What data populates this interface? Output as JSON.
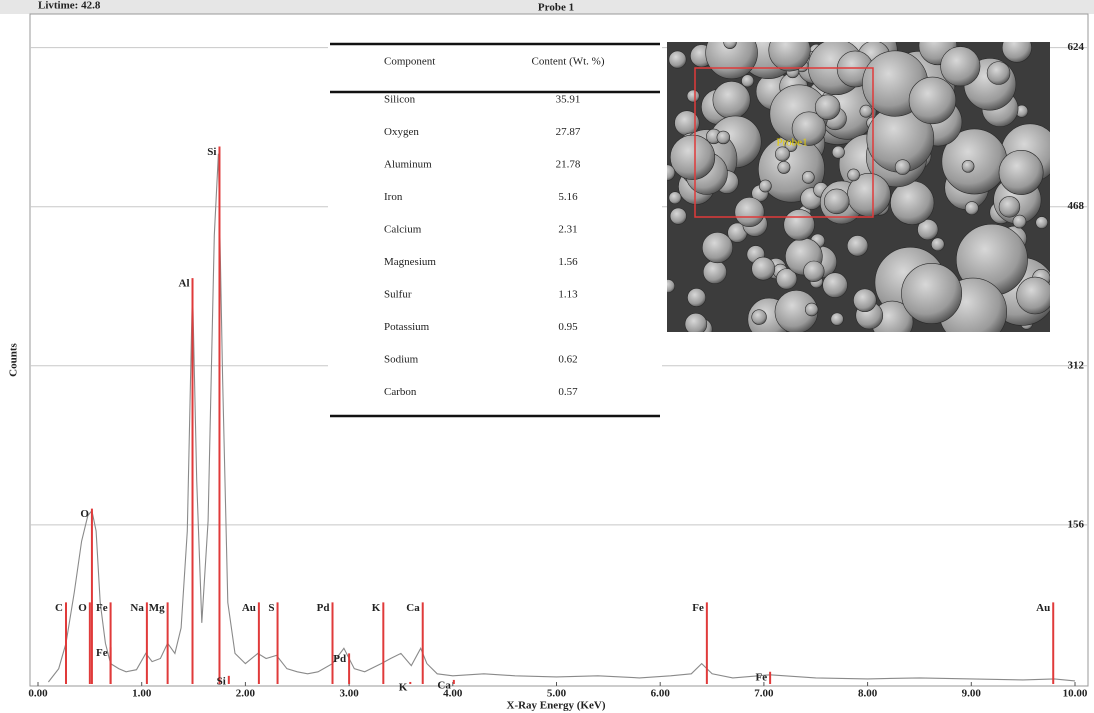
{
  "chart_data": {
    "type": "line",
    "title": "Probe 1",
    "subtitle": "Livtime: 42.8",
    "x_label": "X-Ray Energy (KeV)",
    "y_label": "Counts",
    "color": "#8a8a8a",
    "x": [
      0.1,
      0.2,
      0.27,
      0.35,
      0.42,
      0.48,
      0.52,
      0.56,
      0.6,
      0.65,
      0.7,
      0.78,
      0.85,
      0.95,
      1.04,
      1.1,
      1.18,
      1.25,
      1.32,
      1.38,
      1.44,
      1.49,
      1.53,
      1.58,
      1.64,
      1.7,
      1.74,
      1.78,
      1.83,
      1.9,
      2.0,
      2.12,
      2.2,
      2.3,
      2.4,
      2.5,
      2.6,
      2.7,
      2.84,
      2.95,
      3.05,
      3.15,
      3.31,
      3.4,
      3.5,
      3.6,
      3.69,
      3.75,
      3.85,
      4.0,
      4.3,
      4.6,
      5.0,
      5.4,
      5.8,
      6.1,
      6.3,
      6.4,
      6.5,
      6.7,
      7.06,
      7.5,
      8.0,
      8.5,
      9.0,
      9.5,
      9.8,
      10.0
    ],
    "values": [
      2,
      15,
      40,
      90,
      140,
      165,
      170,
      150,
      80,
      40,
      20,
      15,
      12,
      14,
      30,
      22,
      25,
      40,
      30,
      55,
      150,
      390,
      200,
      60,
      160,
      440,
      520,
      300,
      80,
      30,
      20,
      30,
      25,
      28,
      15,
      12,
      10,
      12,
      20,
      35,
      15,
      12,
      20,
      25,
      30,
      18,
      35,
      20,
      10,
      8,
      10,
      8,
      7,
      8,
      6,
      8,
      10,
      20,
      10,
      6,
      9,
      6,
      5,
      6,
      5,
      4,
      5,
      3
    ],
    "xlim": [
      0,
      10
    ],
    "ylim": [
      0,
      655
    ],
    "xticks": [
      {
        "value": 0,
        "label": "0.00"
      },
      {
        "value": 1,
        "label": "1.00"
      },
      {
        "value": 2,
        "label": "2.00"
      },
      {
        "value": 3,
        "label": "3.00"
      },
      {
        "value": 4,
        "label": "4.00"
      },
      {
        "value": 5,
        "label": "5.00"
      },
      {
        "value": 6,
        "label": "6.00"
      },
      {
        "value": 7,
        "label": "7.00"
      },
      {
        "value": 8,
        "label": "8.00"
      },
      {
        "value": 9,
        "label": "9.00"
      },
      {
        "value": 10,
        "label": "10.00"
      }
    ],
    "yticks": [
      156,
      312,
      468,
      624
    ],
    "grid": true,
    "marker_color": "#e03a3a",
    "markers": [
      {
        "label": "C",
        "x": 0.27,
        "height": 80
      },
      {
        "label": "O",
        "x": 0.52,
        "height": 172
      },
      {
        "label": "O",
        "x": 0.5,
        "height": 80
      },
      {
        "label": "Fe",
        "x": 0.7,
        "height": 80
      },
      {
        "label": "Fe",
        "x": 0.7,
        "height": 36
      },
      {
        "label": "Na",
        "x": 1.05,
        "height": 80
      },
      {
        "label": "Mg",
        "x": 1.25,
        "height": 80
      },
      {
        "label": "Al",
        "x": 1.49,
        "height": 398
      },
      {
        "label": "Si",
        "x": 1.75,
        "height": 527
      },
      {
        "label": "Si",
        "x": 1.84,
        "height": 8
      },
      {
        "label": "Au",
        "x": 2.13,
        "height": 80
      },
      {
        "label": "S",
        "x": 2.31,
        "height": 80
      },
      {
        "label": "Pd",
        "x": 2.84,
        "height": 80
      },
      {
        "label": "Pd",
        "x": 3.0,
        "height": 30
      },
      {
        "label": "K",
        "x": 3.33,
        "height": 80
      },
      {
        "label": "K",
        "x": 3.59,
        "height": 2
      },
      {
        "label": "Ca",
        "x": 3.71,
        "height": 80
      },
      {
        "label": "Ca",
        "x": 4.01,
        "height": 4
      },
      {
        "label": "Fe",
        "x": 6.45,
        "height": 80
      },
      {
        "label": "Fe",
        "x": 7.06,
        "height": 12
      },
      {
        "label": "Au",
        "x": 9.79,
        "height": 80
      }
    ]
  },
  "table": {
    "columns": [
      "Component",
      "Content (Wt. %)"
    ],
    "rows": [
      [
        "Silicon",
        "35.91"
      ],
      [
        "Oxygen",
        "27.87"
      ],
      [
        "Aluminum",
        "21.78"
      ],
      [
        "Iron",
        "5.16"
      ],
      [
        "Calcium",
        "2.31"
      ],
      [
        "Magnesium",
        "1.56"
      ],
      [
        "Sulfur",
        "1.13"
      ],
      [
        "Potassium",
        "0.95"
      ],
      [
        "Sodium",
        "0.62"
      ],
      [
        "Carbon",
        "0.57"
      ]
    ]
  },
  "image": {
    "label": "Probe1"
  }
}
